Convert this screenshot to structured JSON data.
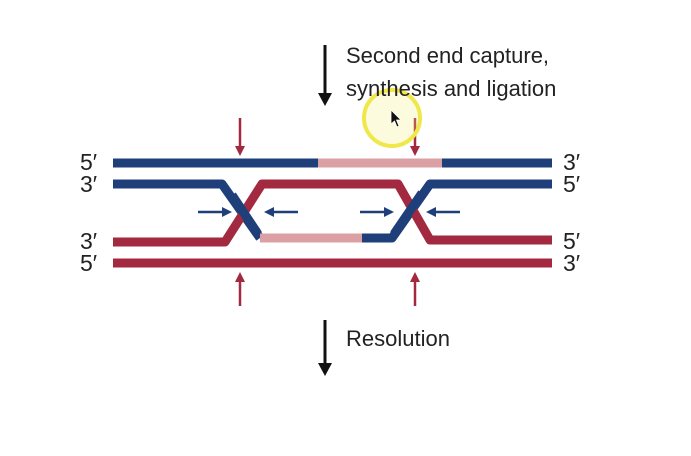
{
  "step_top": {
    "line1": "Second end capture,",
    "line2": "synthesis and ligation"
  },
  "step_bottom": {
    "label": "Resolution"
  },
  "end_labels": {
    "left": [
      "5′",
      "3′",
      "3′",
      "5′"
    ],
    "right": [
      "3′",
      "5′",
      "5′",
      "3′"
    ]
  },
  "colors": {
    "blue_strand": "#1e3f7a",
    "red_strand": "#a2293f",
    "new_synthesis": "#dba0a4",
    "arrow_red": "#a2293f",
    "arrow_blue": "#1e3f7a",
    "process_arrow": "#111111",
    "cursor_highlight": "#f0e84a"
  },
  "icons": {
    "cursor": "mouse-pointer-icon"
  }
}
